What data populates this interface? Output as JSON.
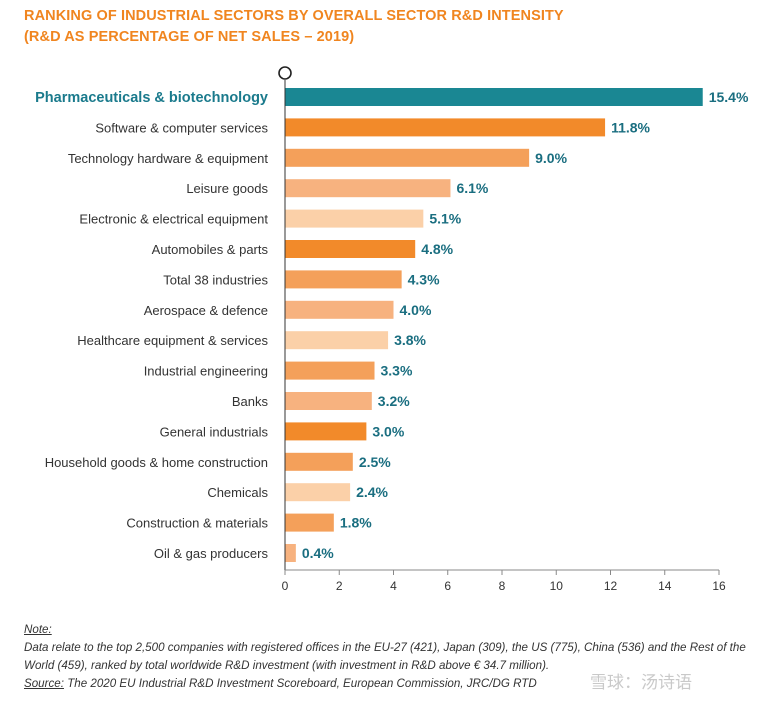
{
  "header": {
    "title_line1": "RANKING OF INDUSTRIAL SECTORS BY OVERALL SECTOR R&D INTENSITY",
    "title_line2": "(R&D AS PERCENTAGE OF NET SALES – 2019)"
  },
  "chart_data": {
    "type": "bar",
    "orientation": "horizontal",
    "categories": [
      "Pharmaceuticals & biotechnology",
      "Software & computer services",
      "Technology hardware & equipment",
      "Leisure goods",
      "Electronic & electrical equipment",
      "Automobiles & parts",
      "Total 38 industries",
      "Aerospace & defence",
      "Healthcare equipment & services",
      "Industrial engineering",
      "Banks",
      "General industrials",
      "Household goods & home construction",
      "Chemicals",
      "Construction & materials",
      "Oil & gas producers"
    ],
    "values": [
      15.4,
      11.8,
      9.0,
      6.1,
      5.1,
      4.8,
      4.3,
      4.0,
      3.8,
      3.3,
      3.2,
      3.0,
      2.5,
      2.4,
      1.8,
      0.4
    ],
    "value_labels": [
      "15.4%",
      "11.8%",
      "9.0%",
      "6.1%",
      "5.1%",
      "4.8%",
      "4.3%",
      "4.0%",
      "3.8%",
      "3.3%",
      "3.2%",
      "3.0%",
      "2.5%",
      "2.4%",
      "1.8%",
      "0.4%"
    ],
    "bar_colors": [
      "#1a8793",
      "#f28a2a",
      "#f4a05a",
      "#f7b27f",
      "#fbd0a8",
      "#f28a2a",
      "#f4a05a",
      "#f7b27f",
      "#fbd0a8",
      "#f4a05a",
      "#f7b27f",
      "#f28a2a",
      "#f4a05a",
      "#fbd0a8",
      "#f4a05a",
      "#f7b27f"
    ],
    "highlighted_category": "Pharmaceuticals & biotechnology",
    "xticks": [
      0,
      2,
      4,
      6,
      8,
      10,
      12,
      14,
      16
    ],
    "xlim": [
      0,
      16
    ],
    "grid": false,
    "legend": "none"
  },
  "footer": {
    "note_heading": "Note:",
    "note_text": "Data relate to the top 2,500 companies with registered offices in the EU-27 (421), Japan (309), the US (775), China (536) and the Rest of the World (459), ranked by total worldwide R&D investment (with investment in R&D above € 34.7 million).",
    "source_label": "Source:",
    "source_text": "The 2020 EU Industrial R&D Investment Scoreboard, European Commission, JRC/DG RTD"
  },
  "watermark": "雪球：汤诗语"
}
